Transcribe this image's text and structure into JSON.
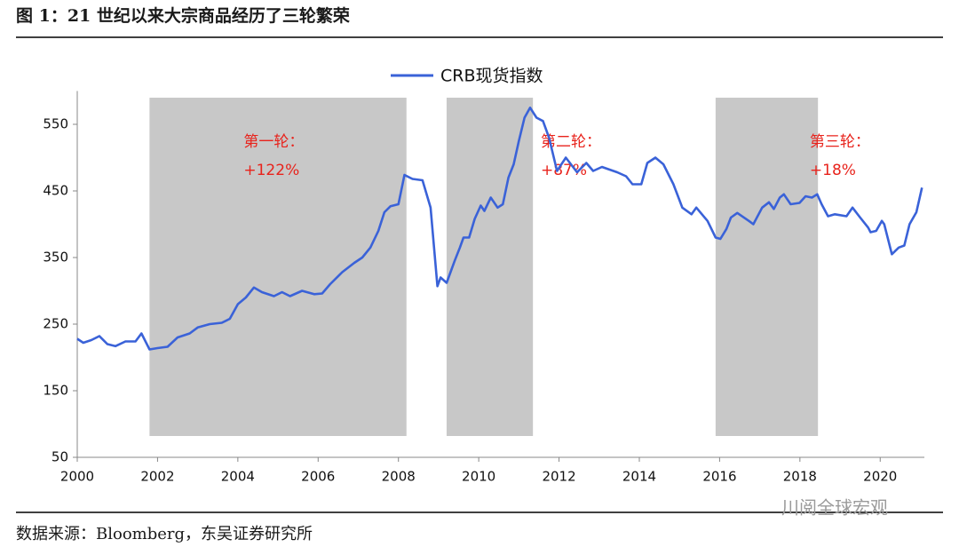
{
  "chart_data": {
    "type": "line",
    "title": "图 1：21 世纪以来大宗商品经历了三轮繁荣",
    "source": "数据来源：Bloomberg，东吴证券研究所",
    "watermark": "川阅全球宏观",
    "series": [
      {
        "name": "CRB现货指数",
        "color": "#3a62d8",
        "x": [
          2000.0,
          2000.15,
          2000.35,
          2000.55,
          2000.75,
          2000.95,
          2001.2,
          2001.45,
          2001.6,
          2001.8,
          2002.0,
          2002.25,
          2002.5,
          2002.8,
          2003.0,
          2003.3,
          2003.6,
          2003.8,
          2004.0,
          2004.2,
          2004.4,
          2004.6,
          2004.9,
          2005.1,
          2005.3,
          2005.6,
          2005.9,
          2006.1,
          2006.3,
          2006.6,
          2006.9,
          2007.1,
          2007.3,
          2007.5,
          2007.65,
          2007.8,
          2008.0,
          2008.15,
          2008.35,
          2008.6,
          2008.8,
          2008.97,
          2009.05,
          2009.2,
          2009.4,
          2009.53,
          2009.62,
          2009.76,
          2009.9,
          2010.05,
          2010.14,
          2010.3,
          2010.47,
          2010.6,
          2010.74,
          2010.87,
          2011.0,
          2011.14,
          2011.28,
          2011.44,
          2011.6,
          2011.75,
          2011.95,
          2012.17,
          2012.45,
          2012.68,
          2012.85,
          2013.07,
          2013.45,
          2013.67,
          2013.83,
          2014.05,
          2014.2,
          2014.4,
          2014.6,
          2014.85,
          2015.07,
          2015.3,
          2015.42,
          2015.7,
          2015.9,
          2016.02,
          2016.17,
          2016.28,
          2016.44,
          2016.73,
          2016.84,
          2017.06,
          2017.23,
          2017.35,
          2017.5,
          2017.6,
          2017.77,
          2017.99,
          2018.14,
          2018.3,
          2018.43,
          2018.54,
          2018.7,
          2018.87,
          2019.16,
          2019.31,
          2019.5,
          2019.7,
          2019.76,
          2019.9,
          2020.04,
          2020.1,
          2020.29,
          2020.46,
          2020.6,
          2020.73,
          2020.9,
          2021.04
        ],
        "values": [
          228,
          222,
          226,
          232,
          220,
          217,
          224,
          224,
          236,
          212,
          214,
          216,
          230,
          236,
          245,
          250,
          252,
          258,
          280,
          290,
          305,
          298,
          292,
          298,
          292,
          300,
          295,
          296,
          310,
          328,
          342,
          350,
          365,
          390,
          418,
          427,
          430,
          474,
          468,
          466,
          425,
          307,
          320,
          312,
          345,
          365,
          380,
          380,
          408,
          428,
          420,
          440,
          425,
          430,
          470,
          490,
          525,
          560,
          575,
          560,
          555,
          530,
          480,
          500,
          478,
          492,
          480,
          486,
          478,
          472,
          460,
          460,
          492,
          500,
          490,
          460,
          425,
          415,
          425,
          405,
          380,
          378,
          393,
          410,
          417,
          405,
          400,
          425,
          433,
          423,
          440,
          445,
          430,
          432,
          442,
          440,
          445,
          430,
          412,
          415,
          412,
          425,
          410,
          395,
          388,
          390,
          405,
          400,
          355,
          365,
          368,
          400,
          418,
          455
        ]
      }
    ],
    "periods": [
      {
        "start": 2001.8,
        "end": 2008.2,
        "label": "第一轮：",
        "change": "+122%"
      },
      {
        "start": 2009.2,
        "end": 2011.35,
        "label": "第二轮：",
        "change": "+87%"
      },
      {
        "start": 2015.9,
        "end": 2018.45,
        "label": "第三轮：",
        "change": "+18%"
      }
    ],
    "xlim": [
      2000,
      2021.1
    ],
    "xticks": [
      2000,
      2002,
      2004,
      2006,
      2008,
      2010,
      2012,
      2014,
      2016,
      2018,
      2020
    ],
    "ylim": [
      50,
      600
    ],
    "yticks": [
      50,
      150,
      250,
      350,
      450,
      550
    ],
    "legend": "top"
  }
}
